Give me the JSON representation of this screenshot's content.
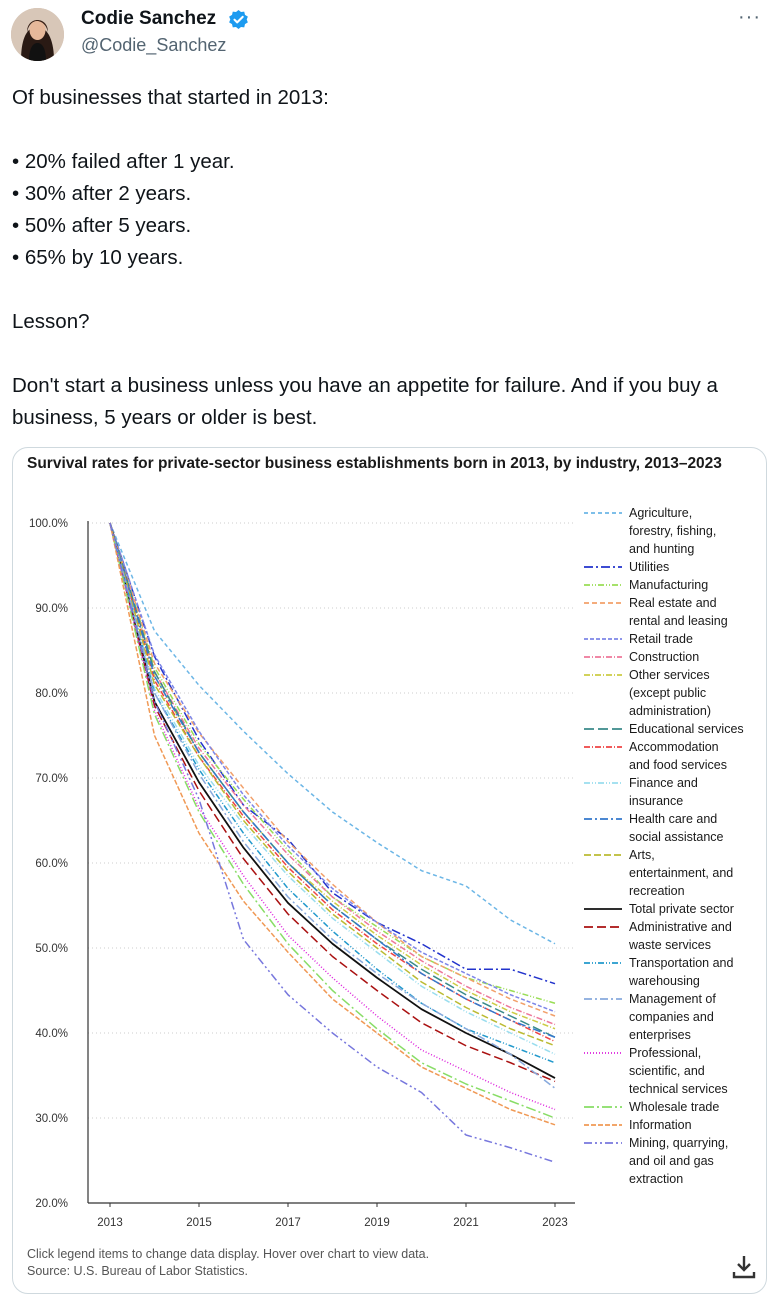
{
  "author": {
    "name": "Codie Sanchez",
    "handle": "@Codie_Sanchez"
  },
  "more_menu": "···",
  "tweet_lines": [
    "Of businesses that started in 2013:",
    "",
    "• 20% failed after 1 year.",
    "• 30% after 2 years.",
    "• 50% after 5 years.",
    "• 65% by 10 years.",
    "",
    "Lesson?",
    "",
    "Don't start a business unless you have an appetite for failure. And if you buy a business, 5 years or older is best."
  ],
  "chart_note": {
    "line1": "Click legend items to change data display. Hover over chart to view data.",
    "line2": "Source: U.S. Bureau of Labor Statistics."
  },
  "colors": {
    "verified_badge": "#1d9bf0",
    "card_border": "#cfd9de",
    "grid": "#cccccc"
  },
  "chart_data": {
    "type": "line",
    "title": "Survival rates for private-sector business establishments born in 2013, by industry, 2013–2023",
    "xlabel": "",
    "ylabel": "",
    "ylim": [
      20,
      100
    ],
    "xlim": [
      2013,
      2023
    ],
    "x_ticks": [
      "2013",
      "2015",
      "2017",
      "2019",
      "2021",
      "2023"
    ],
    "y_ticks": [
      "20.0%",
      "30.0%",
      "40.0%",
      "50.0%",
      "60.0%",
      "70.0%",
      "80.0%",
      "90.0%",
      "100.0%"
    ],
    "x": [
      2013,
      2014,
      2015,
      2016,
      2017,
      2018,
      2019,
      2020,
      2021,
      2022,
      2023
    ],
    "grid": true,
    "legend_position": "right",
    "series": [
      {
        "name": "Agriculture, forestry, fishing, and hunting",
        "label_lines": [
          "Agriculture,",
          "forestry, fishing,",
          "and hunting"
        ],
        "color": "#6cb6e6",
        "dash": "4,3",
        "values": [
          100,
          87.3,
          80.9,
          75.5,
          70.5,
          66.0,
          62.4,
          59.1,
          57.3,
          53.3,
          50.5
        ]
      },
      {
        "name": "Utilities",
        "label_lines": [
          "Utilities"
        ],
        "color": "#2233cc",
        "dash": "9,3,2,3",
        "values": [
          100,
          84.3,
          74.5,
          66.8,
          62.8,
          56.5,
          53.0,
          50.5,
          47.5,
          47.5,
          45.8
        ]
      },
      {
        "name": "Manufacturing",
        "label_lines": [
          "Manufacturing"
        ],
        "color": "#99dd55",
        "dash": "6,2,1,2,1,2",
        "values": [
          100,
          83.0,
          74.0,
          67.5,
          61.5,
          56.0,
          52.5,
          49.0,
          46.5,
          45.0,
          43.5
        ]
      },
      {
        "name": "Real estate and rental and leasing",
        "label_lines": [
          "Real estate and",
          "rental and leasing"
        ],
        "color": "#f2a06a",
        "dash": "5,3",
        "values": [
          100,
          83.5,
          75.3,
          68.8,
          62.5,
          57.5,
          53.0,
          49.0,
          46.5,
          44.0,
          42.0
        ]
      },
      {
        "name": "Retail trade",
        "label_lines": [
          "Retail trade"
        ],
        "color": "#7d86e8",
        "dash": "4,2",
        "values": [
          100,
          84.5,
          75.5,
          68.0,
          62.0,
          57.0,
          53.0,
          49.5,
          47.0,
          44.5,
          42.5
        ]
      },
      {
        "name": "Construction",
        "label_lines": [
          "Construction"
        ],
        "color": "#ee7799",
        "dash": "6,2,1,2",
        "values": [
          100,
          82.5,
          73.5,
          66.8,
          61.0,
          56.0,
          52.0,
          48.5,
          45.5,
          43.0,
          41.0
        ]
      },
      {
        "name": "Other services (except public administration)",
        "label_lines": [
          "Other services",
          "(except public",
          "administration)"
        ],
        "color": "#cccc44",
        "dash": "6,2,1,2",
        "values": [
          100,
          82.0,
          73.0,
          66.0,
          60.0,
          55.5,
          51.5,
          48.0,
          45.0,
          42.5,
          40.5
        ]
      },
      {
        "name": "Educational services",
        "label_lines": [
          "Educational services"
        ],
        "color": "#3a8a8a",
        "dash": "10,4",
        "values": [
          100,
          82.5,
          73.0,
          66.0,
          60.0,
          55.0,
          51.0,
          47.5,
          44.5,
          42.0,
          39.5
        ]
      },
      {
        "name": "Accommodation and food services",
        "label_lines": [
          "Accommodation",
          "and food services"
        ],
        "color": "#ee4444",
        "dash": "6,2,1,2",
        "values": [
          100,
          81.5,
          72.5,
          65.5,
          59.5,
          54.5,
          50.5,
          47.0,
          44.0,
          41.5,
          39.0
        ]
      },
      {
        "name": "Finance and insurance",
        "label_lines": [
          "Finance and",
          "insurance"
        ],
        "color": "#99ddee",
        "dash": "6,2,1,2,1,2",
        "values": [
          100,
          80.5,
          71.5,
          64.5,
          58.5,
          53.5,
          49.5,
          45.5,
          42.5,
          40.0,
          37.5
        ]
      },
      {
        "name": "Health care and social assistance",
        "label_lines": [
          "Health care and",
          "social assistance"
        ],
        "color": "#3377cc",
        "dash": "8,3,2,3",
        "values": [
          100,
          82.0,
          73.0,
          66.0,
          60.0,
          55.0,
          51.0,
          47.0,
          44.0,
          41.5,
          39.5
        ]
      },
      {
        "name": "Arts, entertainment, and recreation",
        "label_lines": [
          "Arts,",
          "entertainment, and",
          "recreation"
        ],
        "color": "#bbbb33",
        "dash": "7,3",
        "values": [
          100,
          81.0,
          72.5,
          65.0,
          59.0,
          54.0,
          50.0,
          46.0,
          43.0,
          40.5,
          38.5
        ]
      },
      {
        "name": "Total private sector",
        "label_lines": [
          "Total private sector"
        ],
        "color": "#111111",
        "dash": "",
        "values": [
          100,
          79.0,
          69.5,
          61.8,
          55.3,
          50.5,
          46.5,
          42.8,
          40.0,
          37.5,
          34.7
        ]
      },
      {
        "name": "Administrative and waste services",
        "label_lines": [
          "Administrative and",
          "waste services"
        ],
        "color": "#aa1111",
        "dash": "9,4",
        "values": [
          100,
          78.5,
          68.5,
          60.5,
          54.0,
          49.0,
          45.0,
          41.2,
          38.5,
          36.5,
          34.3
        ]
      },
      {
        "name": "Transportation and warehousing",
        "label_lines": [
          "Transportation and",
          "warehousing"
        ],
        "color": "#2299cc",
        "dash": "6,2,1,2,1,2",
        "values": [
          100,
          80.0,
          71.0,
          63.5,
          57.0,
          52.0,
          47.5,
          43.5,
          40.5,
          38.5,
          36.5
        ]
      },
      {
        "name": "Management of companies and enterprises",
        "label_lines": [
          "Management of",
          "companies and",
          "enterprises"
        ],
        "color": "#88aadd",
        "dash": "8,3,2,3",
        "values": [
          100,
          80.0,
          70.5,
          62.5,
          56.0,
          51.0,
          47.0,
          43.5,
          40.5,
          37.5,
          33.5
        ]
      },
      {
        "name": "Professional, scientific, and technical services",
        "label_lines": [
          "Professional,",
          "scientific, and",
          "technical services"
        ],
        "color": "#dd22dd",
        "dash": "1,2",
        "values": [
          100,
          78.0,
          66.5,
          58.5,
          51.5,
          46.5,
          42.0,
          38.0,
          35.5,
          33.0,
          31.0
        ]
      },
      {
        "name": "Wholesale trade",
        "label_lines": [
          "Wholesale trade"
        ],
        "color": "#88dd66",
        "dash": "10,3,2,3",
        "values": [
          100,
          77.5,
          66.0,
          57.5,
          50.5,
          45.0,
          40.5,
          36.5,
          34.0,
          32.0,
          30.0
        ]
      },
      {
        "name": "Information",
        "label_lines": [
          "Information"
        ],
        "color": "#f09955",
        "dash": "5,2",
        "values": [
          100,
          75.0,
          63.5,
          55.5,
          49.5,
          44.0,
          40.0,
          36.0,
          33.5,
          31.0,
          29.2
        ]
      },
      {
        "name": "Mining, quarrying, and oil and gas extraction",
        "label_lines": [
          "Mining, quarrying,",
          "and oil and gas",
          "extraction"
        ],
        "color": "#7777dd",
        "dash": "8,3,2,3,2,3",
        "values": [
          100,
          79.0,
          67.5,
          51.0,
          44.5,
          40.0,
          36.0,
          33.0,
          28.0,
          26.5,
          24.8
        ]
      }
    ]
  }
}
